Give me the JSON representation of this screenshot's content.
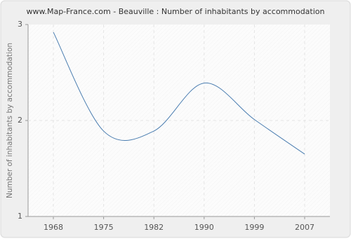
{
  "chart_data": {
    "type": "line",
    "title": "www.Map-France.com - Beauville : Number of inhabitants by accommodation",
    "y_label": "Number of inhabitants by accommodation",
    "categories": [
      "1968",
      "1975",
      "1982",
      "1990",
      "1999",
      "2007"
    ],
    "values": [
      2.92,
      1.89,
      1.89,
      2.39,
      2.01,
      1.65
    ],
    "color": "#4a7db0",
    "ylim": [
      1,
      3
    ],
    "yticks": [
      1,
      2,
      3
    ],
    "grid": true
  }
}
